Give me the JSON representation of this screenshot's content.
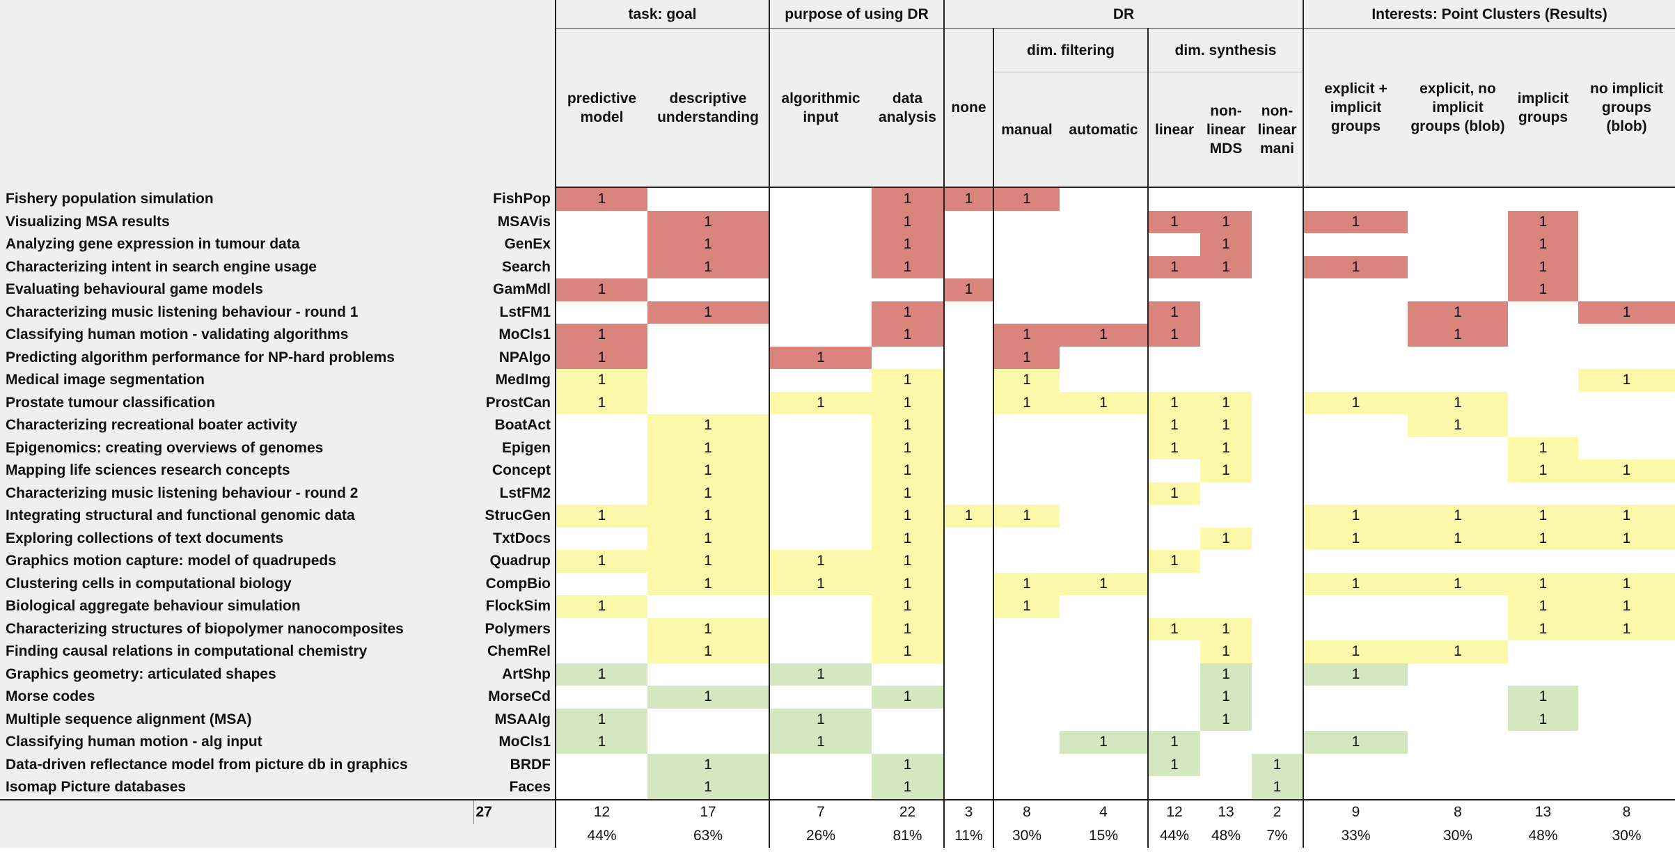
{
  "header": {
    "groups": [
      {
        "title": "task: goal",
        "columns": [
          "predictive model",
          "descriptive understanding"
        ]
      },
      {
        "title": "purpose of using DR",
        "columns": [
          "algorithmic input",
          "data analysis"
        ]
      },
      {
        "title": "DR",
        "columns": [
          "none"
        ],
        "subgroups": [
          {
            "title": "dim. filtering",
            "columns": [
              "manual",
              "automatic"
            ]
          },
          {
            "title": "dim. synthesis",
            "columns": [
              "linear",
              "non-linear MDS",
              "non-linear mani"
            ]
          }
        ]
      },
      {
        "title": "Interests: Point Clusters (Results)",
        "columns": [
          "explicit + implicit groups",
          "explicit, no implicit groups (blob)",
          "implicit groups",
          "no implicit groups (blob)"
        ]
      }
    ]
  },
  "table": {
    "rows": [
      {
        "label": "Fishery population simulation",
        "code": "FishPop",
        "color": "#d9847c",
        "cells": [
          1,
          null,
          null,
          1,
          1,
          1,
          null,
          null,
          null,
          null,
          null,
          null,
          null,
          null
        ]
      },
      {
        "label": "Visualizing MSA results",
        "code": "MSAVis",
        "color": "#d9847c",
        "cells": [
          null,
          1,
          null,
          1,
          null,
          null,
          null,
          1,
          1,
          null,
          1,
          null,
          1,
          null
        ]
      },
      {
        "label": "Analyzing gene expression in tumour data",
        "code": "GenEx",
        "color": "#d9847c",
        "cells": [
          null,
          1,
          null,
          1,
          null,
          null,
          null,
          null,
          1,
          null,
          null,
          null,
          1,
          null
        ]
      },
      {
        "label": "Characterizing intent in search engine usage",
        "code": "Search",
        "color": "#d9847c",
        "cells": [
          null,
          1,
          null,
          1,
          null,
          null,
          null,
          1,
          1,
          null,
          1,
          null,
          1,
          null
        ]
      },
      {
        "label": "Evaluating behavioural game models",
        "code": "GamMdl",
        "color": "#d9847c",
        "cells": [
          1,
          null,
          null,
          null,
          1,
          null,
          null,
          null,
          null,
          null,
          null,
          null,
          1,
          null
        ]
      },
      {
        "label": "Characterizing music listening behaviour - round 1",
        "code": "LstFM1",
        "color": "#d9847c",
        "cells": [
          null,
          1,
          null,
          1,
          null,
          null,
          null,
          1,
          null,
          null,
          null,
          1,
          null,
          1
        ]
      },
      {
        "label": "Classifying human motion - validating algorithms",
        "code": "MoCls1",
        "color": "#d9847c",
        "cells": [
          1,
          null,
          null,
          1,
          null,
          1,
          1,
          1,
          null,
          null,
          null,
          1,
          null,
          null
        ]
      },
      {
        "label": "Predicting algorithm performance for NP-hard problems",
        "code": "NPAlgo",
        "color": "#d9847c",
        "cells": [
          1,
          null,
          1,
          null,
          null,
          1,
          null,
          null,
          null,
          null,
          null,
          null,
          null,
          null
        ]
      },
      {
        "label": "Medical image segmentation",
        "code": "MedImg",
        "color": "#fbf8a9",
        "cells": [
          1,
          null,
          null,
          1,
          null,
          1,
          null,
          null,
          null,
          null,
          null,
          null,
          null,
          1
        ]
      },
      {
        "label": "Prostate tumour classification",
        "code": "ProstCan",
        "color": "#fbf8a9",
        "cells": [
          1,
          null,
          1,
          1,
          null,
          1,
          1,
          1,
          1,
          null,
          1,
          1,
          null,
          null
        ]
      },
      {
        "label": "Characterizing recreational boater activity",
        "code": "BoatAct",
        "color": "#fbf8a9",
        "cells": [
          null,
          1,
          null,
          1,
          null,
          null,
          null,
          1,
          1,
          null,
          null,
          1,
          null,
          null
        ]
      },
      {
        "label": "Epigenomics: creating overviews of genomes",
        "code": "Epigen",
        "color": "#fbf8a9",
        "cells": [
          null,
          1,
          null,
          1,
          null,
          null,
          null,
          1,
          1,
          null,
          null,
          null,
          1,
          null
        ]
      },
      {
        "label": "Mapping life sciences research concepts",
        "code": "Concept",
        "color": "#fbf8a9",
        "cells": [
          null,
          1,
          null,
          1,
          null,
          null,
          null,
          null,
          1,
          null,
          null,
          null,
          1,
          1
        ]
      },
      {
        "label": "Characterizing music listening behaviour - round 2",
        "code": "LstFM2",
        "color": "#fbf8a9",
        "cells": [
          null,
          1,
          null,
          1,
          null,
          null,
          null,
          1,
          null,
          null,
          null,
          null,
          null,
          null
        ]
      },
      {
        "label": "Integrating structural and functional genomic data",
        "code": "StrucGen",
        "color": "#fbf8a9",
        "cells": [
          1,
          1,
          null,
          1,
          1,
          1,
          null,
          null,
          null,
          null,
          1,
          1,
          1,
          1
        ]
      },
      {
        "label": "Exploring collections of text documents",
        "code": "TxtDocs",
        "color": "#fbf8a9",
        "cells": [
          null,
          1,
          null,
          1,
          null,
          null,
          null,
          null,
          1,
          null,
          1,
          1,
          1,
          1
        ]
      },
      {
        "label": "Graphics motion capture: model of quadrupeds",
        "code": "Quadrup",
        "color": "#fbf8a9",
        "cells": [
          1,
          1,
          1,
          1,
          null,
          null,
          null,
          1,
          null,
          null,
          null,
          null,
          null,
          null
        ]
      },
      {
        "label": "Clustering cells in computational biology",
        "code": "CompBio",
        "color": "#fbf8a9",
        "cells": [
          null,
          1,
          1,
          1,
          null,
          1,
          1,
          null,
          null,
          null,
          1,
          1,
          1,
          1
        ]
      },
      {
        "label": "Biological aggregate behaviour simulation",
        "code": "FlockSim",
        "color": "#fbf8a9",
        "cells": [
          1,
          null,
          null,
          1,
          null,
          1,
          null,
          null,
          null,
          null,
          null,
          null,
          1,
          1
        ]
      },
      {
        "label": "Characterizing structures of biopolymer nanocomposites",
        "code": "Polymers",
        "color": "#fbf8a9",
        "cells": [
          null,
          1,
          null,
          1,
          null,
          null,
          null,
          1,
          1,
          null,
          null,
          null,
          1,
          1
        ]
      },
      {
        "label": "Finding causal relations in computational chemistry",
        "code": "ChemRel",
        "color": "#fbf8a9",
        "cells": [
          null,
          1,
          null,
          1,
          null,
          null,
          null,
          null,
          1,
          null,
          1,
          1,
          null,
          null
        ]
      },
      {
        "label": "Graphics geometry: articulated shapes",
        "code": "ArtShp",
        "color": "#d4e7c1",
        "cells": [
          1,
          null,
          1,
          null,
          null,
          null,
          null,
          null,
          1,
          null,
          1,
          null,
          null,
          null
        ]
      },
      {
        "label": "Morse codes",
        "code": "MorseCd",
        "color": "#d4e7c1",
        "cells": [
          null,
          1,
          null,
          1,
          null,
          null,
          null,
          null,
          1,
          null,
          null,
          null,
          1,
          null
        ]
      },
      {
        "label": "Multiple sequence alignment (MSA)",
        "code": "MSAAlg",
        "color": "#d4e7c1",
        "cells": [
          1,
          null,
          1,
          null,
          null,
          null,
          null,
          null,
          1,
          null,
          null,
          null,
          1,
          null
        ]
      },
      {
        "label": "Classifying human motion - alg input",
        "code": "MoCls1",
        "color": "#d4e7c1",
        "cells": [
          1,
          null,
          1,
          null,
          null,
          null,
          1,
          1,
          null,
          null,
          1,
          null,
          null,
          null
        ]
      },
      {
        "label": "Data-driven reflectance model from picture db in graphics",
        "code": "BRDF",
        "color": "#d4e7c1",
        "cells": [
          null,
          1,
          null,
          1,
          null,
          null,
          null,
          1,
          null,
          1,
          null,
          null,
          null,
          null
        ]
      },
      {
        "label": "Isomap Picture databases",
        "code": "Faces",
        "color": "#d4e7c1",
        "cells": [
          null,
          1,
          null,
          1,
          null,
          null,
          null,
          null,
          null,
          1,
          null,
          null,
          null,
          null
        ]
      }
    ]
  },
  "footer": {
    "total": 27,
    "counts": [
      12,
      17,
      7,
      22,
      3,
      8,
      4,
      12,
      13,
      2,
      9,
      8,
      13,
      8
    ],
    "percents": [
      "44%",
      "63%",
      "26%",
      "81%",
      "11%",
      "30%",
      "15%",
      "44%",
      "48%",
      "7%",
      "33%",
      "30%",
      "48%",
      "30%"
    ]
  }
}
